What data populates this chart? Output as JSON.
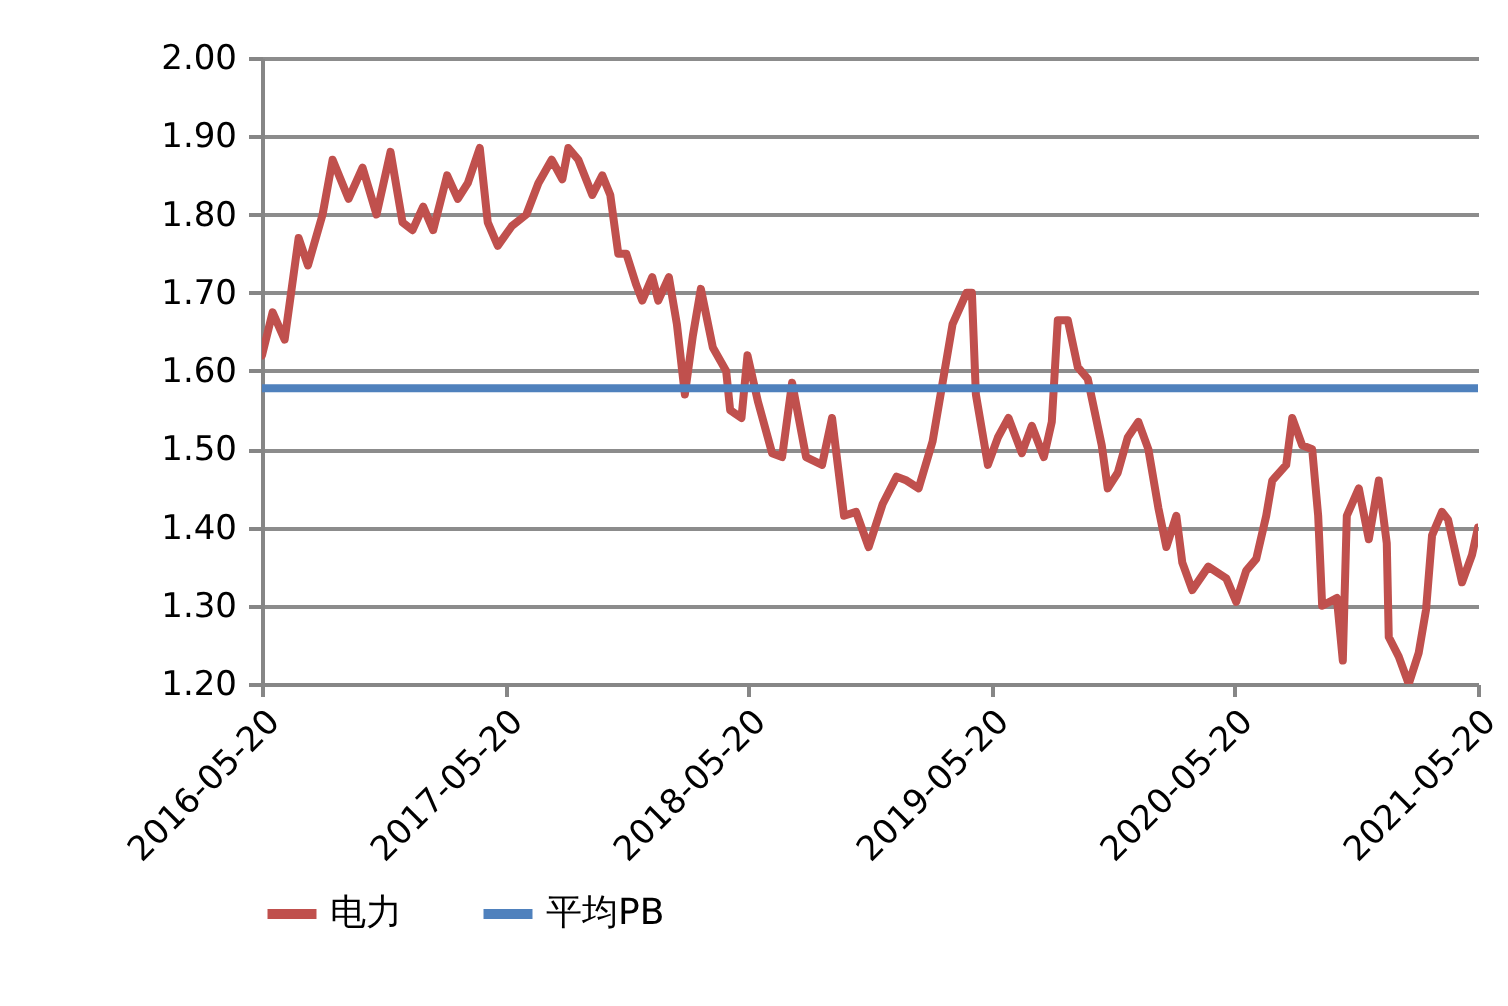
{
  "chart_data": {
    "type": "line",
    "x": [
      "2016-05-20",
      "2016-06-05",
      "2016-06-23",
      "2016-07-14",
      "2016-07-28",
      "2016-08-19",
      "2016-09-03",
      "2016-09-27",
      "2016-10-18",
      "2016-11-08",
      "2016-11-29",
      "2016-12-17",
      "2017-01-01",
      "2017-01-17",
      "2017-02-01",
      "2017-02-22",
      "2017-03-10",
      "2017-03-25",
      "2017-04-12",
      "2017-04-24",
      "2017-05-09",
      "2017-05-30",
      "2017-06-21",
      "2017-07-09",
      "2017-07-29",
      "2017-08-14",
      "2017-08-23",
      "2017-09-07",
      "2017-09-28",
      "2017-10-13",
      "2017-10-25",
      "2017-11-06",
      "2017-11-18",
      "2017-12-03",
      "2017-12-12",
      "2017-12-27",
      "2018-01-05",
      "2018-01-21",
      "2018-02-02",
      "2018-02-14",
      "2018-02-26",
      "2018-03-10",
      "2018-03-28",
      "2018-04-17",
      "2018-04-23",
      "2018-05-10",
      "2018-05-19",
      "2018-06-04",
      "2018-06-25",
      "2018-07-10",
      "2018-07-25",
      "2018-08-15",
      "2018-09-08",
      "2018-09-23",
      "2018-10-11",
      "2018-10-29",
      "2018-11-17",
      "2018-12-08",
      "2018-12-29",
      "2019-01-13",
      "2019-01-31",
      "2019-02-21",
      "2019-03-08",
      "2019-03-23",
      "2019-04-13",
      "2019-04-21",
      "2019-04-27",
      "2019-05-15",
      "2019-05-30",
      "2019-06-15",
      "2019-07-05",
      "2019-07-20",
      "2019-08-07",
      "2019-08-19",
      "2019-08-28",
      "2019-09-12",
      "2019-09-27",
      "2019-10-12",
      "2019-11-02",
      "2019-11-11",
      "2019-11-26",
      "2019-12-11",
      "2019-12-27",
      "2020-01-11",
      "2020-01-26",
      "2020-02-07",
      "2020-02-22",
      "2020-03-02",
      "2020-03-17",
      "2020-04-10",
      "2020-05-07",
      "2020-05-22",
      "2020-06-06",
      "2020-06-21",
      "2020-07-06",
      "2020-07-15",
      "2020-08-05",
      "2020-08-14",
      "2020-08-29",
      "2020-09-13",
      "2020-09-22",
      "2020-09-28",
      "2020-10-20",
      "2020-10-29",
      "2020-11-04",
      "2020-11-22",
      "2020-12-07",
      "2020-12-22",
      "2021-01-03",
      "2021-01-06",
      "2021-01-21",
      "2021-02-05",
      "2021-02-20",
      "2021-03-03",
      "2021-03-12",
      "2021-03-27",
      "2021-04-05",
      "2021-04-26",
      "2021-05-11",
      "2021-05-20"
    ],
    "series": [
      {
        "name": "电力",
        "color": "#c0504d",
        "values": [
          1.62,
          1.675,
          1.64,
          1.77,
          1.735,
          1.8,
          1.87,
          1.82,
          1.86,
          1.8,
          1.88,
          1.79,
          1.78,
          1.81,
          1.78,
          1.85,
          1.82,
          1.84,
          1.885,
          1.79,
          1.76,
          1.785,
          1.8,
          1.84,
          1.87,
          1.845,
          1.885,
          1.87,
          1.825,
          1.85,
          1.825,
          1.75,
          1.75,
          1.71,
          1.69,
          1.72,
          1.69,
          1.72,
          1.66,
          1.57,
          1.645,
          1.705,
          1.63,
          1.6,
          1.55,
          1.54,
          1.62,
          1.56,
          1.495,
          1.49,
          1.585,
          1.49,
          1.48,
          1.54,
          1.415,
          1.42,
          1.375,
          1.43,
          1.465,
          1.46,
          1.45,
          1.51,
          1.585,
          1.66,
          1.7,
          1.7,
          1.57,
          1.48,
          1.515,
          1.54,
          1.495,
          1.53,
          1.49,
          1.535,
          1.665,
          1.665,
          1.605,
          1.59,
          1.505,
          1.45,
          1.47,
          1.515,
          1.535,
          1.5,
          1.425,
          1.375,
          1.415,
          1.355,
          1.32,
          1.35,
          1.335,
          1.305,
          1.345,
          1.36,
          1.415,
          1.46,
          1.48,
          1.54,
          1.505,
          1.5,
          1.415,
          1.3,
          1.31,
          1.23,
          1.415,
          1.45,
          1.385,
          1.46,
          1.38,
          1.26,
          1.235,
          1.2,
          1.24,
          1.295,
          1.39,
          1.42,
          1.41,
          1.33,
          1.365,
          1.4
        ]
      },
      {
        "name": "平均PB",
        "color": "#4f81bd",
        "x": [
          "2016-05-20",
          "2021-05-20"
        ],
        "values": [
          1.578,
          1.578
        ]
      }
    ],
    "xlim": [
      "2016-05-20",
      "2021-05-20"
    ],
    "xticks": [
      "2016-05-20",
      "2017-05-20",
      "2018-05-20",
      "2019-05-20",
      "2020-05-20",
      "2021-05-20"
    ],
    "ylim": [
      1.2,
      2.0
    ],
    "yticks": [
      {
        "value": 1.2,
        "label": "1.20"
      },
      {
        "value": 1.3,
        "label": "1.30"
      },
      {
        "value": 1.4,
        "label": "1.40"
      },
      {
        "value": 1.5,
        "label": "1.50"
      },
      {
        "value": 1.6,
        "label": "1.60"
      },
      {
        "value": 1.7,
        "label": "1.70"
      },
      {
        "value": 1.8,
        "label": "1.80"
      },
      {
        "value": 1.9,
        "label": "1.90"
      },
      {
        "value": 2.0,
        "label": "2.00"
      }
    ],
    "grid": "y",
    "legend": "bottom",
    "line_style": "solid"
  }
}
